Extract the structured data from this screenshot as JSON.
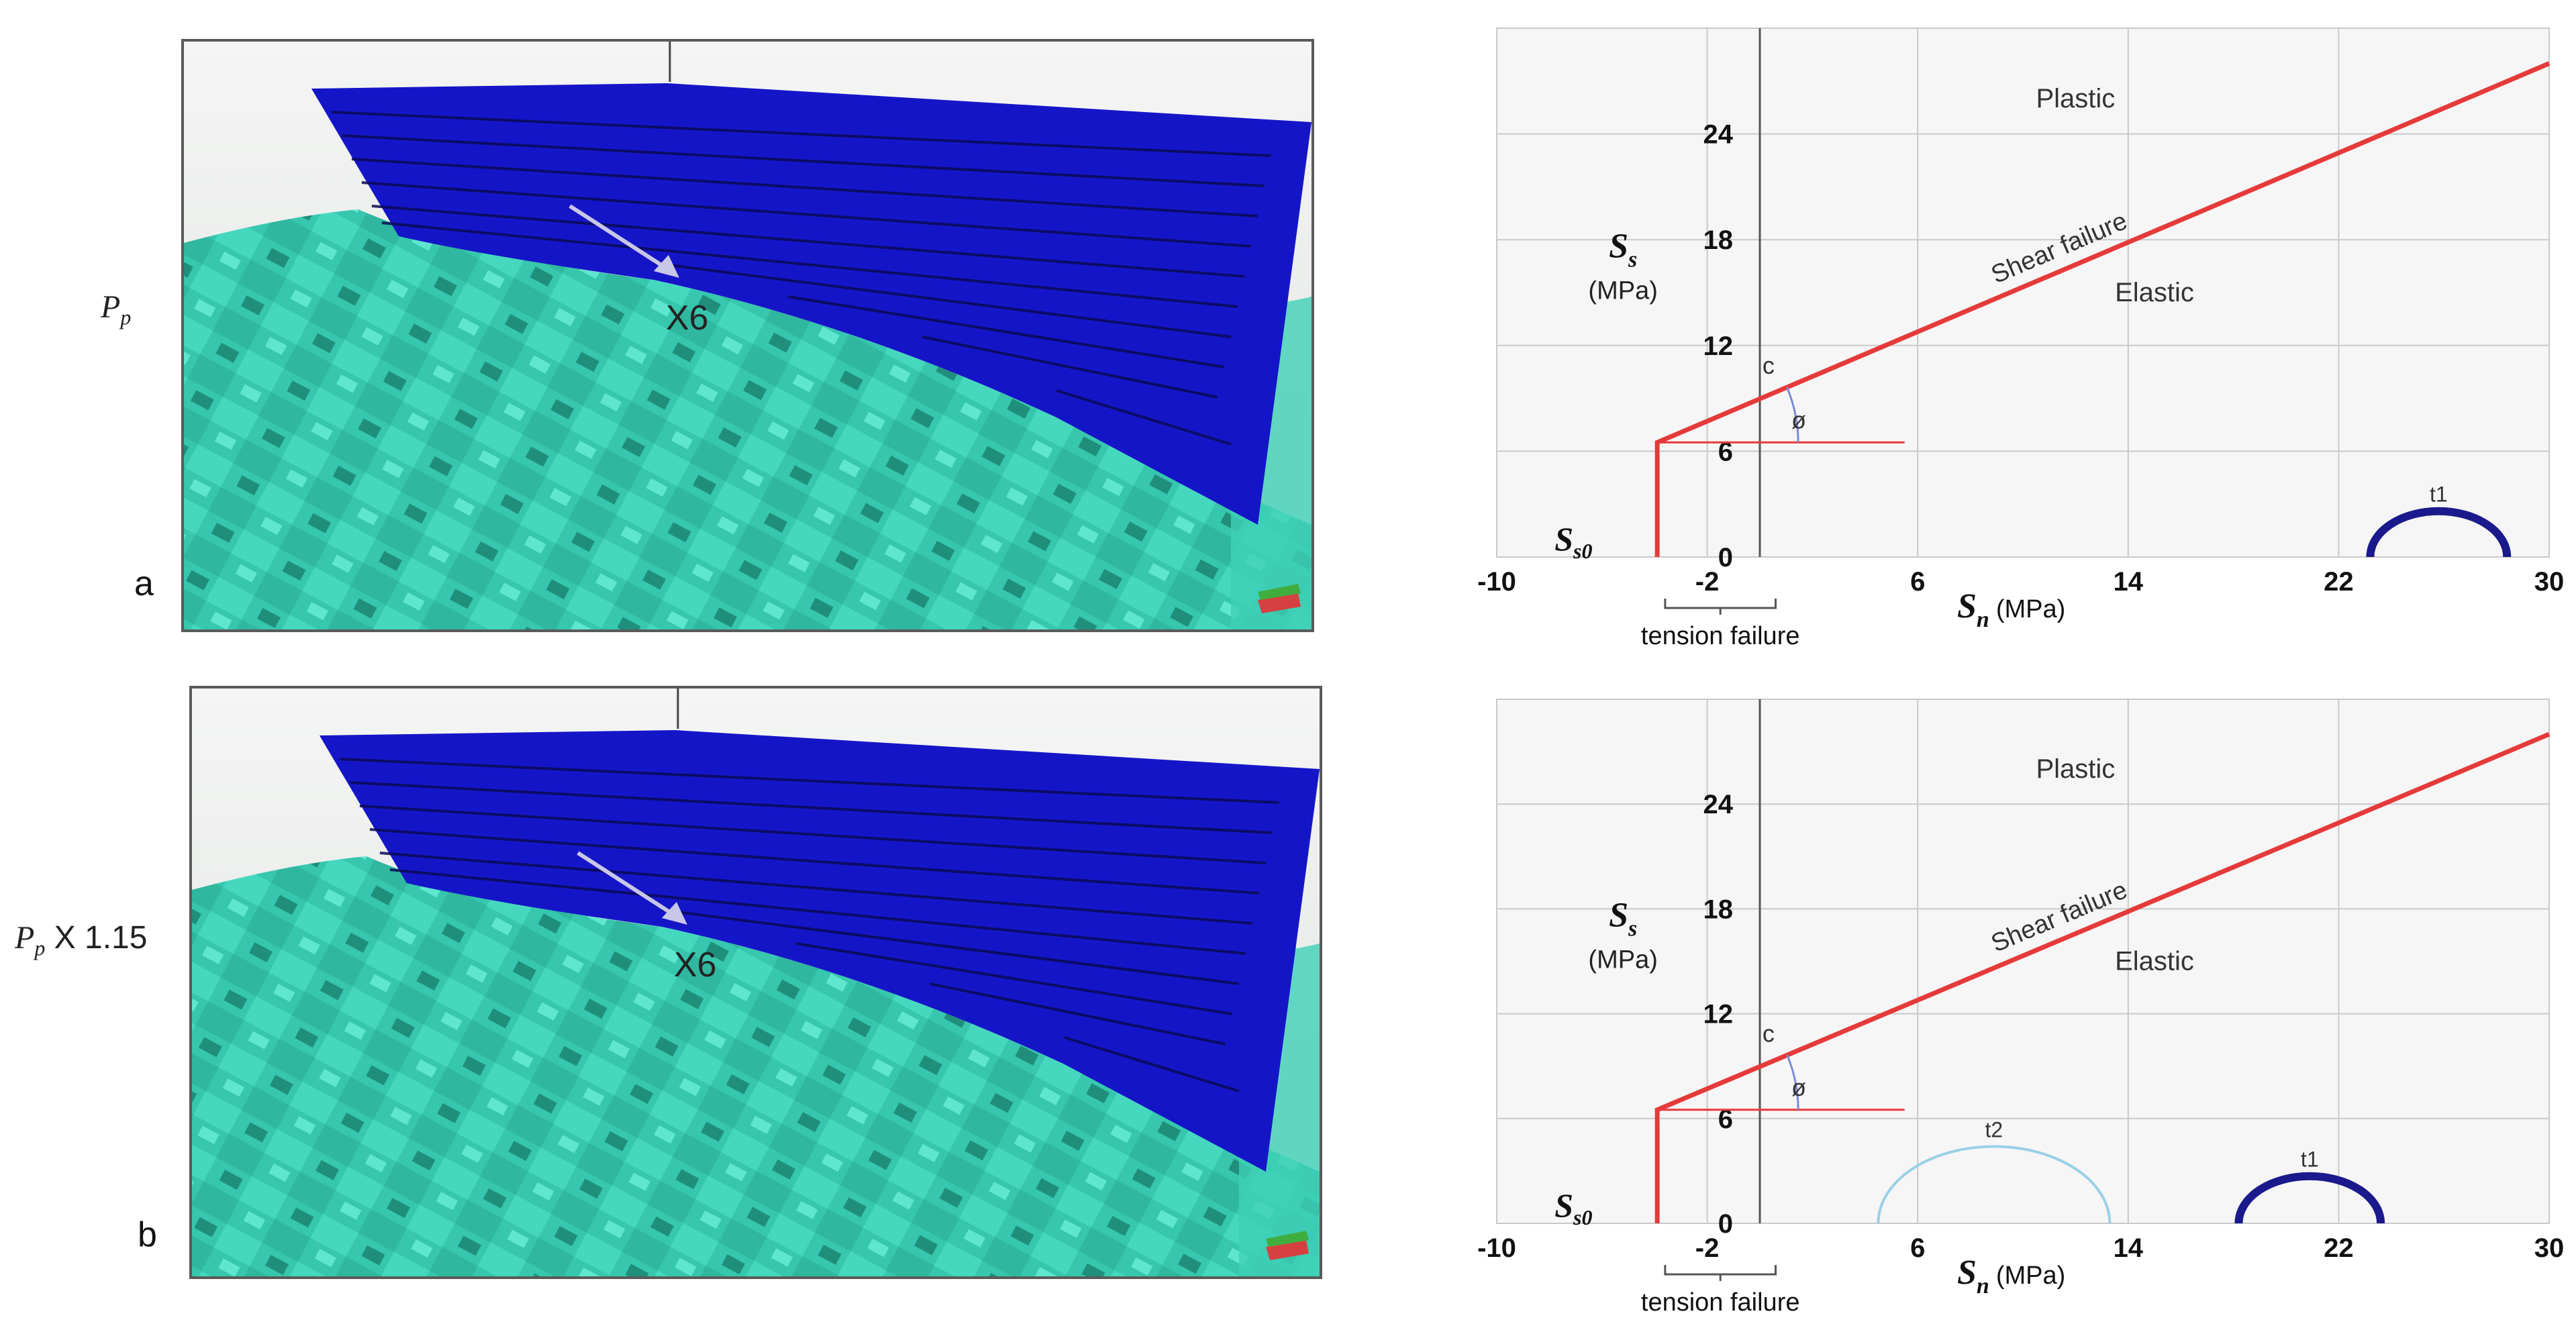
{
  "rows": [
    {
      "side_label_symbol": "P",
      "side_label_sub": "p",
      "side_label_suffix": "",
      "view_letter": "a",
      "well_label": "X6"
    },
    {
      "side_label_symbol": "P",
      "side_label_sub": "p",
      "side_label_suffix": " X 1.15",
      "view_letter": "b",
      "well_label": "X6"
    }
  ],
  "colors": {
    "fault_blue": "#1515c8",
    "terrain_teal": "#35c9b0",
    "failure_line": "#e53a3a",
    "circle_dark": "#1a1a8c",
    "circle_light": "#9ad0e6",
    "grid": "#c9c9c9"
  },
  "chart_data": [
    {
      "type": "line",
      "xlabel_symbol": "S",
      "xlabel_sub": "n",
      "xlabel_unit": "(MPa)",
      "ylabel_symbol": "S",
      "ylabel_sub": "s",
      "ylabel_unit": "(MPa)",
      "xlim": [
        -10,
        30
      ],
      "ylim": [
        0,
        30
      ],
      "xticks": [
        "-10",
        "-2",
        "6",
        "14",
        "22",
        "30"
      ],
      "yticks": [
        "0",
        "6",
        "12",
        "18",
        "24"
      ],
      "region_labels": [
        "Plastic",
        "Elastic"
      ],
      "line_label": "Shear failure",
      "cohesion_label": "c",
      "angle_label": "ø",
      "ss0_symbol": "S",
      "ss0_sub": "s0",
      "tension_label": "tension failure",
      "failure_envelope": {
        "x": [
          -3.9,
          -3.9,
          30
        ],
        "y": [
          0,
          6.5,
          28
        ]
      },
      "friction_ref_line": {
        "x": [
          -3.9,
          5.5
        ],
        "y": [
          6.5,
          6.5
        ]
      },
      "circles": [
        {
          "name": "t1",
          "center": 25.8,
          "radius": 2.6,
          "style": "dark"
        }
      ]
    },
    {
      "type": "line",
      "xlabel_symbol": "S",
      "xlabel_sub": "n",
      "xlabel_unit": "(MPa)",
      "ylabel_symbol": "S",
      "ylabel_sub": "s",
      "ylabel_unit": "(MPa)",
      "xlim": [
        -10,
        30
      ],
      "ylim": [
        0,
        30
      ],
      "xticks": [
        "-10",
        "-2",
        "6",
        "14",
        "22",
        "30"
      ],
      "yticks": [
        "0",
        "6",
        "12",
        "18",
        "24"
      ],
      "region_labels": [
        "Plastic",
        "Elastic"
      ],
      "line_label": "Shear failure",
      "cohesion_label": "c",
      "angle_label": "ø",
      "ss0_symbol": "S",
      "ss0_sub": "s0",
      "tension_label": "tension failure",
      "failure_envelope": {
        "x": [
          -3.9,
          -3.9,
          30
        ],
        "y": [
          0,
          6.5,
          28
        ]
      },
      "friction_ref_line": {
        "x": [
          -3.9,
          5.5
        ],
        "y": [
          6.5,
          6.5
        ]
      },
      "circles": [
        {
          "name": "t2",
          "center": 8.9,
          "radius": 4.4,
          "style": "light"
        },
        {
          "name": "t1",
          "center": 20.9,
          "radius": 2.7,
          "style": "dark"
        }
      ]
    }
  ]
}
